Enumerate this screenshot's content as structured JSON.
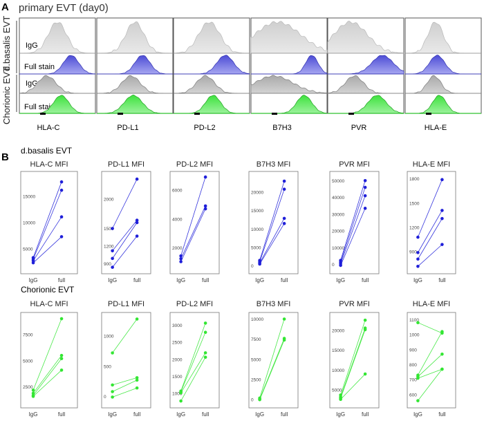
{
  "panel_a": {
    "letter": "A",
    "title": "primary EVT (day0)",
    "group_labels": [
      "d.basalis EVT",
      "Chorionic EVT"
    ],
    "row_labels": [
      "IgG",
      "Full stain",
      "IgG",
      "Full stain"
    ],
    "markers": [
      "HLA-C",
      "PD-L1",
      "PD-L2",
      "B7H3",
      "PVR",
      "HLA-E"
    ]
  },
  "panel_b": {
    "letter": "B",
    "groups": [
      {
        "title": "d.basalis EVT",
        "color": "#1f1fd9"
      },
      {
        "title": "Chorionic EVT",
        "color": "#33e633"
      }
    ]
  },
  "chart_data": [
    {
      "type": "line",
      "title": "HLA-C MFI",
      "group": "d.basalis EVT",
      "categories": [
        "IgG",
        "full"
      ],
      "yticks": [
        5000,
        10000,
        15000
      ],
      "ylim": [
        1000,
        19000
      ],
      "series": [
        {
          "values": [
            3300,
            17800
          ]
        },
        {
          "values": [
            3000,
            16200
          ]
        },
        {
          "values": [
            2700,
            11100
          ]
        },
        {
          "values": [
            2300,
            7300
          ]
        }
      ]
    },
    {
      "type": "line",
      "title": "PD-L1 MFI",
      "group": "d.basalis EVT",
      "categories": [
        "IgG",
        "full"
      ],
      "yticks": [
        900,
        1200,
        1500,
        2000
      ],
      "ylim": [
        800,
        2400
      ],
      "series": [
        {
          "values": [
            1500,
            2340
          ]
        },
        {
          "values": [
            1120,
            1640
          ]
        },
        {
          "values": [
            990,
            1600
          ]
        },
        {
          "values": [
            840,
            1370
          ]
        }
      ]
    },
    {
      "type": "line",
      "title": "PD-L2 MFI",
      "group": "d.basalis EVT",
      "categories": [
        "IgG",
        "full"
      ],
      "yticks": [
        2000,
        4000,
        6000
      ],
      "ylim": [
        500,
        7000
      ],
      "series": [
        {
          "values": [
            1450,
            6900
          ]
        },
        {
          "values": [
            1250,
            4900
          ]
        },
        {
          "values": [
            1050,
            4700
          ]
        }
      ]
    },
    {
      "type": "line",
      "title": "B7H3 MFI",
      "group": "d.basalis EVT",
      "categories": [
        "IgG",
        "full"
      ],
      "yticks": [
        0,
        5000,
        10000,
        15000,
        20000
      ],
      "ylim": [
        -1000,
        24500
      ],
      "series": [
        {
          "values": [
            1500,
            23000
          ]
        },
        {
          "values": [
            1100,
            20800
          ]
        },
        {
          "values": [
            800,
            12900
          ]
        },
        {
          "values": [
            500,
            11500
          ]
        }
      ]
    },
    {
      "type": "line",
      "title": "PVR MFI",
      "group": "d.basalis EVT",
      "categories": [
        "IgG",
        "full"
      ],
      "yticks": [
        0,
        10000,
        20000,
        30000,
        40000,
        50000
      ],
      "ylim": [
        -3000,
        53000
      ],
      "series": [
        {
          "values": [
            2500,
            50000
          ]
        },
        {
          "values": [
            1500,
            46000
          ]
        },
        {
          "values": [
            500,
            41000
          ]
        },
        {
          "values": [
            -500,
            33500
          ]
        }
      ]
    },
    {
      "type": "line",
      "title": "HLA-E MFI",
      "group": "d.basalis EVT",
      "categories": [
        "IgG",
        "full"
      ],
      "yticks": [
        900,
        1200,
        1500,
        1800
      ],
      "ylim": [
        680,
        1840
      ],
      "series": [
        {
          "values": [
            1080,
            1790
          ]
        },
        {
          "values": [
            890,
            1410
          ]
        },
        {
          "values": [
            810,
            1310
          ]
        },
        {
          "values": [
            720,
            990
          ]
        }
      ]
    },
    {
      "type": "line",
      "title": "HLA-C MFI",
      "group": "Chorionic EVT",
      "categories": [
        "IgG",
        "full"
      ],
      "yticks": [
        2500,
        5000,
        7500
      ],
      "ylim": [
        900,
        9200
      ],
      "series": [
        {
          "values": [
            2200,
            9000
          ]
        },
        {
          "values": [
            1900,
            5500
          ]
        },
        {
          "values": [
            1700,
            5200
          ]
        },
        {
          "values": [
            1600,
            4100
          ]
        }
      ]
    },
    {
      "type": "line",
      "title": "PD-L1 MFI",
      "group": "Chorionic EVT",
      "categories": [
        "IgG",
        "full"
      ],
      "yticks": [
        0,
        500,
        1000
      ],
      "ylim": [
        -120,
        1320
      ],
      "series": [
        {
          "values": [
            720,
            1280
          ]
        },
        {
          "values": [
            190,
            310
          ]
        },
        {
          "values": [
            80,
            270
          ]
        },
        {
          "values": [
            -10,
            140
          ]
        }
      ]
    },
    {
      "type": "line",
      "title": "PD-L2 MFI",
      "group": "Chorionic EVT",
      "categories": [
        "IgG",
        "full"
      ],
      "yticks": [
        1000,
        1500,
        2000,
        2500,
        3000
      ],
      "ylim": [
        700,
        3250
      ],
      "series": [
        {
          "values": [
            1070,
            3060
          ]
        },
        {
          "values": [
            1050,
            2790
          ]
        },
        {
          "values": [
            1020,
            2190
          ]
        },
        {
          "values": [
            780,
            2060
          ]
        }
      ]
    },
    {
      "type": "line",
      "title": "B7H3 MFI",
      "group": "Chorionic EVT",
      "categories": [
        "IgG",
        "full"
      ],
      "yticks": [
        0,
        2500,
        5000,
        7500,
        10000
      ],
      "ylim": [
        -500,
        10300
      ],
      "series": [
        {
          "values": [
            200,
            10000
          ]
        },
        {
          "values": [
            80,
            7600
          ]
        },
        {
          "values": [
            0,
            7400
          ]
        }
      ]
    },
    {
      "type": "line",
      "title": "PVR MFI",
      "group": "Chorionic EVT",
      "categories": [
        "IgG",
        "full"
      ],
      "yticks": [
        5000,
        10000,
        15000,
        20000
      ],
      "ylim": [
        1500,
        23500
      ],
      "series": [
        {
          "values": [
            3700,
            22600
          ]
        },
        {
          "values": [
            3200,
            20600
          ]
        },
        {
          "values": [
            2900,
            20200
          ]
        },
        {
          "values": [
            2600,
            9000
          ]
        }
      ]
    },
    {
      "type": "line",
      "title": "HLA-E MFI",
      "group": "Chorionic EVT",
      "categories": [
        "IgG",
        "full"
      ],
      "yticks": [
        600,
        700,
        800,
        900,
        1000,
        1100
      ],
      "ylim": [
        540,
        1120
      ],
      "series": [
        {
          "values": [
            1080,
            1010
          ]
        },
        {
          "values": [
            730,
            1020
          ]
        },
        {
          "values": [
            720,
            870
          ]
        },
        {
          "values": [
            710,
            770
          ]
        },
        {
          "values": [
            560,
            770
          ]
        }
      ]
    }
  ]
}
